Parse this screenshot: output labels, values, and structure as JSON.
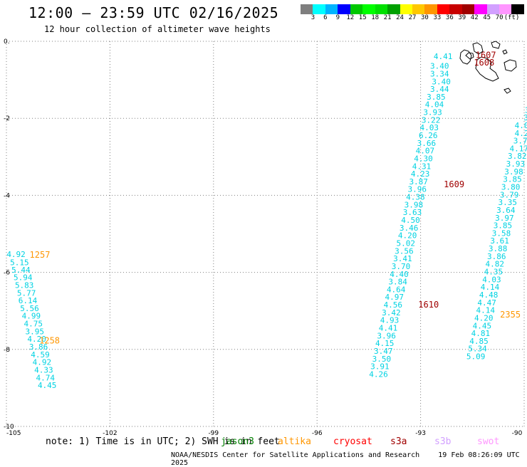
{
  "header": {
    "title": "12:00 — 23:59 UTC 02/16/2025",
    "subtitle": "12 hour collection of altimeter wave heights"
  },
  "scale": {
    "colors": [
      "#7f7f7f",
      "#00ffff",
      "#00b4ff",
      "#0000ff",
      "#00c800",
      "#00ff00",
      "#00e000",
      "#00a000",
      "#ffff00",
      "#ffc800",
      "#ff9600",
      "#ff0000",
      "#c80000",
      "#a00000",
      "#ff00ff",
      "#d2a0ff",
      "#ff96ff",
      "#000000"
    ],
    "labels": [
      "3",
      "6",
      "9",
      "12",
      "15",
      "18",
      "21",
      "24",
      "27",
      "30",
      "33",
      "36",
      "39",
      "42",
      "45",
      "70",
      "(ft)"
    ]
  },
  "map": {
    "lon_range": [
      -105,
      -90
    ],
    "lat_range": [
      -10,
      0
    ],
    "lon_ticks": [
      "-105",
      "-102",
      "-99",
      "-96",
      "-93",
      "-90"
    ],
    "lat_ticks": [
      "0.",
      "-2",
      "-4",
      "-6",
      "-8",
      "-10"
    ],
    "grid_color": "#808080",
    "value_color": "#00d2e2"
  },
  "tracks": [
    {
      "name": "track-west",
      "values": [
        {
          "lon": -104.72,
          "lat": -5.53,
          "v": "4.92"
        },
        {
          "lon": -104.62,
          "lat": -5.74,
          "v": "5.15"
        },
        {
          "lon": -104.58,
          "lat": -5.93,
          "v": "5.44"
        },
        {
          "lon": -104.52,
          "lat": -6.13,
          "v": "5.94"
        },
        {
          "lon": -104.48,
          "lat": -6.33,
          "v": "5.83"
        },
        {
          "lon": -104.42,
          "lat": -6.53,
          "v": "5.77"
        },
        {
          "lon": -104.38,
          "lat": -6.73,
          "v": "6.14",
          "c": "#0096b4"
        },
        {
          "lon": -104.33,
          "lat": -6.93,
          "v": "5.56"
        },
        {
          "lon": -104.28,
          "lat": -7.13,
          "v": "4.99"
        },
        {
          "lon": -104.22,
          "lat": -7.33,
          "v": "4.75"
        },
        {
          "lon": -104.18,
          "lat": -7.53,
          "v": "3.95",
          "c": "#0096b4"
        },
        {
          "lon": -104.12,
          "lat": -7.73,
          "v": "4.20"
        },
        {
          "lon": -104.07,
          "lat": -7.93,
          "v": "3.86"
        },
        {
          "lon": -104.02,
          "lat": -8.13,
          "v": "4.59"
        },
        {
          "lon": -103.97,
          "lat": -8.33,
          "v": "4.92"
        },
        {
          "lon": -103.92,
          "lat": -8.53,
          "v": "4.33"
        },
        {
          "lon": -103.87,
          "lat": -8.73,
          "v": "4.74"
        },
        {
          "lon": -103.82,
          "lat": -8.93,
          "v": "4.45"
        }
      ]
    },
    {
      "name": "track-center",
      "values": [
        {
          "lon": -92.35,
          "lat": -0.39,
          "v": "4.41"
        },
        {
          "lon": -92.45,
          "lat": -0.64,
          "v": "3.40"
        },
        {
          "lon": -92.45,
          "lat": -0.84,
          "v": "3.34"
        },
        {
          "lon": -92.4,
          "lat": -1.04,
          "v": "3.40"
        },
        {
          "lon": -92.45,
          "lat": -1.24,
          "v": "3.44"
        },
        {
          "lon": -92.55,
          "lat": -1.44,
          "v": "3.85"
        },
        {
          "lon": -92.6,
          "lat": -1.64,
          "v": "4.04"
        },
        {
          "lon": -92.65,
          "lat": -1.84,
          "v": "3.93"
        },
        {
          "lon": -92.7,
          "lat": -2.04,
          "v": "3.22"
        },
        {
          "lon": -92.75,
          "lat": -2.24,
          "v": "4.03"
        },
        {
          "lon": -92.78,
          "lat": -2.44,
          "v": "6.26",
          "c": "#0096b4"
        },
        {
          "lon": -92.83,
          "lat": -2.64,
          "v": "3.66"
        },
        {
          "lon": -92.87,
          "lat": -2.84,
          "v": "4.07"
        },
        {
          "lon": -92.92,
          "lat": -3.04,
          "v": "4.30"
        },
        {
          "lon": -92.97,
          "lat": -3.24,
          "v": "4.31"
        },
        {
          "lon": -93.01,
          "lat": -3.44,
          "v": "4.23"
        },
        {
          "lon": -93.06,
          "lat": -3.64,
          "v": "3.87"
        },
        {
          "lon": -93.1,
          "lat": -3.84,
          "v": "3.96"
        },
        {
          "lon": -93.15,
          "lat": -4.04,
          "v": "4.38"
        },
        {
          "lon": -93.2,
          "lat": -4.24,
          "v": "3.98"
        },
        {
          "lon": -93.24,
          "lat": -4.44,
          "v": "3.63"
        },
        {
          "lon": -93.29,
          "lat": -4.64,
          "v": "4.50"
        },
        {
          "lon": -93.34,
          "lat": -4.84,
          "v": "3.46"
        },
        {
          "lon": -93.38,
          "lat": -5.04,
          "v": "4.20"
        },
        {
          "lon": -93.43,
          "lat": -5.24,
          "v": "5.02"
        },
        {
          "lon": -93.48,
          "lat": -5.44,
          "v": "3.56"
        },
        {
          "lon": -93.52,
          "lat": -5.64,
          "v": "3.41"
        },
        {
          "lon": -93.57,
          "lat": -5.84,
          "v": "3.70"
        },
        {
          "lon": -93.62,
          "lat": -6.04,
          "v": "4.40"
        },
        {
          "lon": -93.66,
          "lat": -6.24,
          "v": "3.84"
        },
        {
          "lon": -93.71,
          "lat": -6.44,
          "v": "4.64"
        },
        {
          "lon": -93.76,
          "lat": -6.64,
          "v": "4.97"
        },
        {
          "lon": -93.8,
          "lat": -6.84,
          "v": "4.56"
        },
        {
          "lon": -93.85,
          "lat": -7.04,
          "v": "3.42"
        },
        {
          "lon": -93.9,
          "lat": -7.24,
          "v": "4.93"
        },
        {
          "lon": -93.94,
          "lat": -7.44,
          "v": "4.41"
        },
        {
          "lon": -93.99,
          "lat": -7.64,
          "v": "3.96"
        },
        {
          "lon": -94.04,
          "lat": -7.84,
          "v": "4.15"
        },
        {
          "lon": -94.08,
          "lat": -8.04,
          "v": "3.47"
        },
        {
          "lon": -94.13,
          "lat": -8.24,
          "v": "3.50"
        },
        {
          "lon": -94.18,
          "lat": -8.44,
          "v": "3.91"
        },
        {
          "lon": -94.22,
          "lat": -8.64,
          "v": "4.26"
        }
      ]
    },
    {
      "name": "track-east",
      "values": [
        {
          "lon": -89.91,
          "lat": -1.78,
          "v": "3"
        },
        {
          "lon": -89.88,
          "lat": -1.98,
          "v": "3."
        },
        {
          "lon": -90.07,
          "lat": -2.18,
          "v": "4.0"
        },
        {
          "lon": -90.07,
          "lat": -2.38,
          "v": "4.2"
        },
        {
          "lon": -90.11,
          "lat": -2.58,
          "v": "3.7"
        },
        {
          "lon": -90.15,
          "lat": -2.78,
          "v": "4.17"
        },
        {
          "lon": -90.2,
          "lat": -2.98,
          "v": "3.82"
        },
        {
          "lon": -90.25,
          "lat": -3.18,
          "v": "3.93"
        },
        {
          "lon": -90.3,
          "lat": -3.38,
          "v": "3.98"
        },
        {
          "lon": -90.34,
          "lat": -3.58,
          "v": "3.85"
        },
        {
          "lon": -90.39,
          "lat": -3.78,
          "v": "3.80"
        },
        {
          "lon": -90.43,
          "lat": -3.98,
          "v": "3.79"
        },
        {
          "lon": -90.48,
          "lat": -4.18,
          "v": "3.35"
        },
        {
          "lon": -90.53,
          "lat": -4.38,
          "v": "3.64"
        },
        {
          "lon": -90.57,
          "lat": -4.58,
          "v": "3.97"
        },
        {
          "lon": -90.62,
          "lat": -4.78,
          "v": "3.85"
        },
        {
          "lon": -90.66,
          "lat": -4.98,
          "v": "3.58"
        },
        {
          "lon": -90.71,
          "lat": -5.18,
          "v": "3.61"
        },
        {
          "lon": -90.76,
          "lat": -5.38,
          "v": "3.88"
        },
        {
          "lon": -90.8,
          "lat": -5.58,
          "v": "3.86"
        },
        {
          "lon": -90.85,
          "lat": -5.78,
          "v": "4.82"
        },
        {
          "lon": -90.89,
          "lat": -5.98,
          "v": "4.35"
        },
        {
          "lon": -90.94,
          "lat": -6.18,
          "v": "4.03"
        },
        {
          "lon": -90.99,
          "lat": -6.38,
          "v": "4.14"
        },
        {
          "lon": -91.03,
          "lat": -6.58,
          "v": "4.48"
        },
        {
          "lon": -91.08,
          "lat": -6.78,
          "v": "4.47"
        },
        {
          "lon": -91.12,
          "lat": -6.98,
          "v": "4.14"
        },
        {
          "lon": -91.17,
          "lat": -7.18,
          "v": "4.20"
        },
        {
          "lon": -91.22,
          "lat": -7.38,
          "v": "4.45"
        },
        {
          "lon": -91.26,
          "lat": -7.58,
          "v": "4.81"
        },
        {
          "lon": -91.31,
          "lat": -7.78,
          "v": "4.85"
        },
        {
          "lon": -91.35,
          "lat": -7.98,
          "v": "5.34"
        },
        {
          "lon": -91.4,
          "lat": -8.18,
          "v": "5.09"
        }
      ]
    }
  ],
  "times": [
    {
      "text": "1607",
      "lon": -91.11,
      "lat": -0.34,
      "color": "#a00000",
      "name": "time-1607"
    },
    {
      "text": "1608",
      "lon": -91.16,
      "lat": -0.54,
      "color": "#a00000",
      "name": "time-1608"
    },
    {
      "text": "1609",
      "lon": -92.03,
      "lat": -3.7,
      "color": "#a00000",
      "name": "time-1609"
    },
    {
      "text": "1610",
      "lon": -92.77,
      "lat": -6.82,
      "color": "#a00000",
      "name": "time-1610"
    },
    {
      "text": "1257",
      "lon": -104.03,
      "lat": -5.53,
      "color": "#ff9600",
      "name": "time-1257"
    },
    {
      "text": "1258",
      "lon": -103.75,
      "lat": -7.75,
      "color": "#ff9600",
      "name": "time-1258"
    },
    {
      "text": "2355",
      "lon": -90.4,
      "lat": -7.08,
      "color": "#ff9600",
      "name": "time-2355"
    }
  ],
  "legend": {
    "note": "note: 1) Time is in UTC; 2) SWH is in feet",
    "satellites": [
      {
        "label": "jason3",
        "color": "#008000"
      },
      {
        "label": "altika",
        "color": "#ff9600"
      },
      {
        "label": "cryosat",
        "color": "#ff0000"
      },
      {
        "label": "s3a",
        "color": "#a00000"
      },
      {
        "label": "s3b",
        "color": "#d2a0ff"
      },
      {
        "label": "swot",
        "color": "#ff96ff"
      }
    ]
  },
  "footer": {
    "credit": "NOAA/NESDIS Center for Satellite Applications and Research",
    "timestamp": "19 Feb 08:26:09 UTC 2025"
  }
}
